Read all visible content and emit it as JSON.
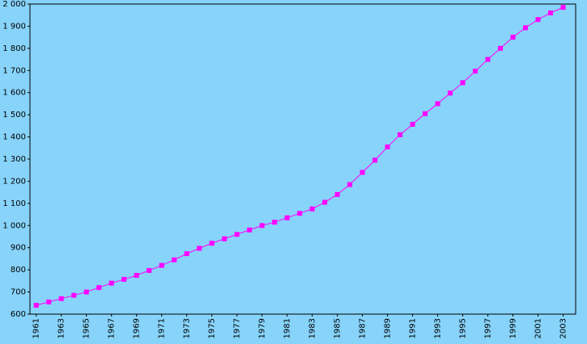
{
  "chart_data": {
    "type": "line",
    "x": [
      1961,
      1962,
      1963,
      1964,
      1965,
      1966,
      1967,
      1968,
      1969,
      1970,
      1971,
      1972,
      1973,
      1974,
      1975,
      1976,
      1977,
      1978,
      1979,
      1980,
      1981,
      1982,
      1983,
      1984,
      1985,
      1986,
      1987,
      1988,
      1989,
      1990,
      1991,
      1992,
      1993,
      1994,
      1995,
      1996,
      1997,
      1998,
      1999,
      2000,
      2001,
      2002,
      2003
    ],
    "series": [
      {
        "color": "#ff00ff",
        "values": [
          640,
          655,
          670,
          685,
          700,
          720,
          740,
          757,
          775,
          797,
          820,
          845,
          873,
          897,
          920,
          940,
          960,
          980,
          1000,
          1015,
          1035,
          1055,
          1075,
          1105,
          1140,
          1185,
          1240,
          1295,
          1355,
          1410,
          1457,
          1505,
          1550,
          1598,
          1645,
          1697,
          1750,
          1800,
          1850,
          1893,
          1930,
          1960,
          1985
        ]
      }
    ],
    "xlim": [
      1960.5,
      2004
    ],
    "xticks": [
      1961,
      1963,
      1965,
      1967,
      1969,
      1971,
      1973,
      1975,
      1977,
      1979,
      1981,
      1983,
      1985,
      1987,
      1989,
      1991,
      1993,
      1995,
      1997,
      1999,
      2001,
      2003
    ],
    "ylim": [
      600,
      2000
    ],
    "yticks": [
      600,
      700,
      800,
      900,
      {
        "value": 1000,
        "label": "1 000"
      },
      {
        "value": 1100,
        "label": "1 100"
      },
      {
        "value": 1200,
        "label": "1 200"
      },
      {
        "value": 1300,
        "label": "1 300"
      },
      {
        "value": 1400,
        "label": "1 400"
      },
      {
        "value": 1500,
        "label": "1 500"
      },
      {
        "value": 1600,
        "label": "1 600"
      },
      {
        "value": 1700,
        "label": "1 700"
      },
      {
        "value": 1800,
        "label": "1 800"
      },
      {
        "value": 1900,
        "label": "1 900"
      },
      {
        "value": 2000,
        "label": "2 000"
      }
    ]
  }
}
